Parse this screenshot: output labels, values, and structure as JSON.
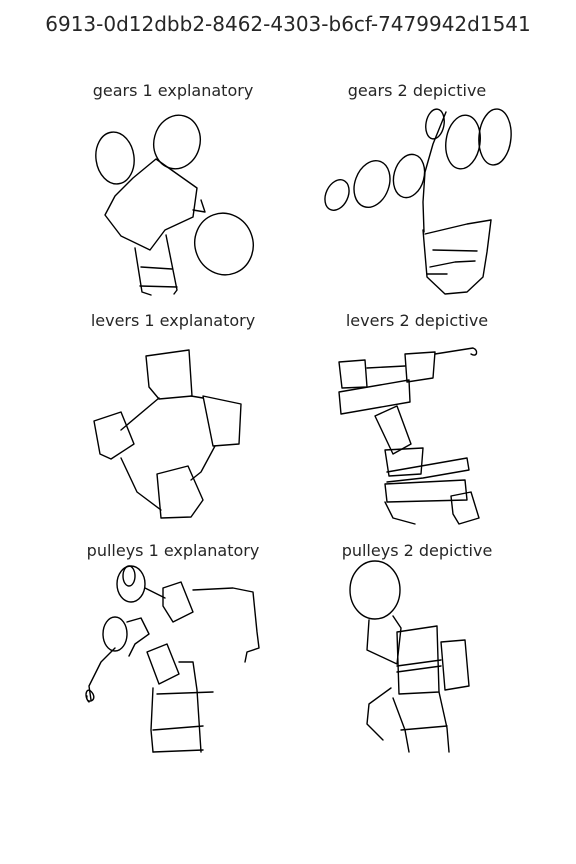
{
  "figure": {
    "title": "6913-0d12dbb2-8462-4303-b6cf-7479942d1541"
  },
  "panels": [
    {
      "label": "gears 1 explanatory"
    },
    {
      "label": "gears 2 depictive"
    },
    {
      "label": "levers 1 explanatory"
    },
    {
      "label": "levers 2 depictive"
    },
    {
      "label": "pulleys 1 explanatory"
    },
    {
      "label": "pulleys 2 depictive"
    }
  ],
  "colors": {
    "stroke": "#000000",
    "text": "#262626",
    "background": "#ffffff"
  }
}
